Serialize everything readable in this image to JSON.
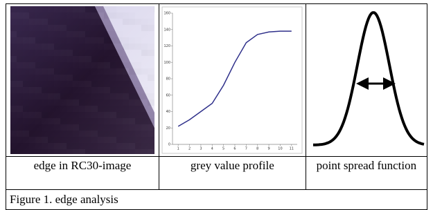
{
  "table": {
    "captions": [
      "edge in RC30-image",
      "grey value profile",
      "point spread function"
    ]
  },
  "figure_caption": "Figure 1. edge analysis",
  "chart_data": {
    "type": "line",
    "x": [
      1,
      2,
      3,
      4,
      5,
      6,
      7,
      8,
      9,
      10,
      11
    ],
    "values": [
      22,
      30,
      40,
      50,
      72,
      100,
      124,
      134,
      137,
      138,
      138
    ],
    "color": "#2e2f8a",
    "xlim": [
      0.5,
      11.5
    ],
    "xticks": [
      1,
      2,
      3,
      4,
      5,
      6,
      7,
      8,
      9,
      10,
      11
    ],
    "ylim": [
      0,
      160
    ],
    "yticks": [
      0,
      20,
      40,
      60,
      80,
      100,
      120,
      140,
      160
    ]
  }
}
